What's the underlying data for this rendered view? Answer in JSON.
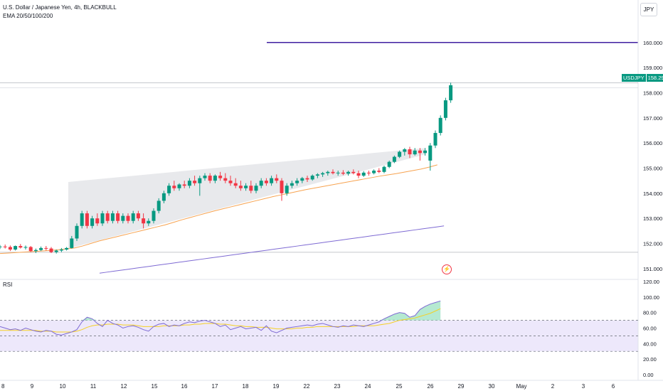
{
  "header": {
    "symbol_title": "U.S. Dollar / Japanese Yen, 4h, BLACKBULL",
    "indicator": "EMA 20/50/100/200"
  },
  "currency_button": "JPY",
  "last_price": {
    "symbol": "USDJPY",
    "value": "158.299"
  },
  "rsi_label": "RSI",
  "colors": {
    "up": "#089981",
    "down": "#f23645",
    "ema_orange": "#f7a350",
    "ema_purple": "#7e6ad3",
    "hline": "#3f1fa0",
    "wedge": "#e6e7ea",
    "rsi_line": "#7e6ad3",
    "rsi_ma": "#f5d024",
    "rsi_band": "#ede8fb"
  },
  "chart_data": [
    {
      "type": "candlestick",
      "yaxis_ticks": [
        "160.000",
        "159.000",
        "158.000",
        "157.000",
        "156.000",
        "155.000",
        "154.000",
        "153.000",
        "152.000",
        "151.000"
      ],
      "ylim": [
        150.6,
        160.9
      ],
      "xaxis_ticks": [
        "8",
        "9",
        "10",
        "11",
        "12",
        "15",
        "16",
        "17",
        "18",
        "19",
        "22",
        "23",
        "24",
        "25",
        "26",
        "29",
        "30",
        "May",
        "2",
        "3",
        "6"
      ],
      "horizontal_line": 160.0,
      "ohlc": [
        [
          151.86,
          151.94,
          151.78,
          151.88
        ],
        [
          151.88,
          151.96,
          151.8,
          151.86
        ],
        [
          151.86,
          151.92,
          151.7,
          151.76
        ],
        [
          151.76,
          151.92,
          151.72,
          151.9
        ],
        [
          151.9,
          151.98,
          151.8,
          151.84
        ],
        [
          151.84,
          151.92,
          151.76,
          151.86
        ],
        [
          151.86,
          151.9,
          151.66,
          151.7
        ],
        [
          151.7,
          151.8,
          151.62,
          151.74
        ],
        [
          151.74,
          151.88,
          151.7,
          151.82
        ],
        [
          151.82,
          151.9,
          151.72,
          151.8
        ],
        [
          151.8,
          151.86,
          151.62,
          151.66
        ],
        [
          151.66,
          151.76,
          151.6,
          151.72
        ],
        [
          151.72,
          151.82,
          151.66,
          151.76
        ],
        [
          151.76,
          151.86,
          151.72,
          151.82
        ],
        [
          151.82,
          152.3,
          151.8,
          152.2
        ],
        [
          152.2,
          152.8,
          152.1,
          152.7
        ],
        [
          152.7,
          153.3,
          152.6,
          153.2
        ],
        [
          153.2,
          153.3,
          152.6,
          152.7
        ],
        [
          152.7,
          153.1,
          152.6,
          153.0
        ],
        [
          153.0,
          153.2,
          152.7,
          152.8
        ],
        [
          152.8,
          153.3,
          152.7,
          153.2
        ],
        [
          153.2,
          153.3,
          152.8,
          152.9
        ],
        [
          152.9,
          153.3,
          152.8,
          153.2
        ],
        [
          153.2,
          153.3,
          152.8,
          152.9
        ],
        [
          152.9,
          153.2,
          152.8,
          153.1
        ],
        [
          153.1,
          153.2,
          152.8,
          152.9
        ],
        [
          152.9,
          153.3,
          152.8,
          153.2
        ],
        [
          153.2,
          153.3,
          152.9,
          153.0
        ],
        [
          153.0,
          153.2,
          152.6,
          152.8
        ],
        [
          152.8,
          153.0,
          152.7,
          152.9
        ],
        [
          152.9,
          153.4,
          152.8,
          153.3
        ],
        [
          153.3,
          153.8,
          153.2,
          153.7
        ],
        [
          153.7,
          154.1,
          153.6,
          154.0
        ],
        [
          154.0,
          154.4,
          153.9,
          154.3
        ],
        [
          154.3,
          154.5,
          154.1,
          154.2
        ],
        [
          154.2,
          154.4,
          154.1,
          154.35
        ],
        [
          154.35,
          154.5,
          154.2,
          154.3
        ],
        [
          154.3,
          154.6,
          154.2,
          154.5
        ],
        [
          154.5,
          154.7,
          154.3,
          154.4
        ],
        [
          154.4,
          154.7,
          153.9,
          154.6
        ],
        [
          154.6,
          154.8,
          154.5,
          154.7
        ],
        [
          154.7,
          154.8,
          154.4,
          154.5
        ],
        [
          154.5,
          154.75,
          154.4,
          154.7
        ],
        [
          154.7,
          154.85,
          154.5,
          154.6
        ],
        [
          154.6,
          154.8,
          154.4,
          154.5
        ],
        [
          154.5,
          154.7,
          154.3,
          154.4
        ],
        [
          154.4,
          154.6,
          154.2,
          154.3
        ],
        [
          154.3,
          154.5,
          154.1,
          154.2
        ],
        [
          154.2,
          154.4,
          154.1,
          154.3
        ],
        [
          154.3,
          154.5,
          154.0,
          154.1
        ],
        [
          154.1,
          154.4,
          154.0,
          154.3
        ],
        [
          154.3,
          154.6,
          154.2,
          154.5
        ],
        [
          154.5,
          154.6,
          154.3,
          154.4
        ],
        [
          154.4,
          154.7,
          154.3,
          154.6
        ],
        [
          154.6,
          154.75,
          154.4,
          154.5
        ],
        [
          154.5,
          154.6,
          153.7,
          154.0
        ],
        [
          154.0,
          154.4,
          153.9,
          154.3
        ],
        [
          154.3,
          154.5,
          154.2,
          154.4
        ],
        [
          154.4,
          154.6,
          154.3,
          154.5
        ],
        [
          154.5,
          154.65,
          154.4,
          154.6
        ],
        [
          154.6,
          154.7,
          154.45,
          154.55
        ],
        [
          154.55,
          154.75,
          154.5,
          154.7
        ],
        [
          154.7,
          154.8,
          154.6,
          154.75
        ],
        [
          154.75,
          154.85,
          154.65,
          154.8
        ],
        [
          154.8,
          154.9,
          154.7,
          154.85
        ],
        [
          154.85,
          154.95,
          154.75,
          154.8
        ],
        [
          154.8,
          154.9,
          154.7,
          154.82
        ],
        [
          154.82,
          154.92,
          154.72,
          154.78
        ],
        [
          154.78,
          154.9,
          154.7,
          154.85
        ],
        [
          154.85,
          154.95,
          154.75,
          154.8
        ],
        [
          154.8,
          154.9,
          154.6,
          154.7
        ],
        [
          154.7,
          154.88,
          154.65,
          154.82
        ],
        [
          154.82,
          154.9,
          154.7,
          154.8
        ],
        [
          154.8,
          154.95,
          154.75,
          154.9
        ],
        [
          154.9,
          155.0,
          154.8,
          154.85
        ],
        [
          154.85,
          155.1,
          154.8,
          155.05
        ],
        [
          155.05,
          155.3,
          155.0,
          155.25
        ],
        [
          155.25,
          155.5,
          155.2,
          155.45
        ],
        [
          155.45,
          155.7,
          155.4,
          155.65
        ],
        [
          155.65,
          155.8,
          155.5,
          155.75
        ],
        [
          155.75,
          155.85,
          155.4,
          155.55
        ],
        [
          155.55,
          155.8,
          155.5,
          155.7
        ],
        [
          155.7,
          155.8,
          155.3,
          155.6
        ],
        [
          155.6,
          155.8,
          155.5,
          155.7
        ],
        [
          155.3,
          156.0,
          154.9,
          155.9
        ],
        [
          155.9,
          156.5,
          155.8,
          156.4
        ],
        [
          156.4,
          157.1,
          156.3,
          157.0
        ],
        [
          157.0,
          157.8,
          156.9,
          157.7
        ],
        [
          157.7,
          158.4,
          157.6,
          158.3
        ]
      ],
      "ema_50": [
        151.6,
        151.62,
        151.64,
        151.66,
        151.68,
        151.7,
        151.72,
        151.75,
        151.78,
        151.82,
        151.9,
        152.0,
        152.1,
        152.18,
        152.26,
        152.34,
        152.42,
        152.5,
        152.58,
        152.66,
        152.74,
        152.84,
        152.94,
        153.03,
        153.12,
        153.21,
        153.3,
        153.38,
        153.46,
        153.54,
        153.62,
        153.7,
        153.78,
        153.86,
        153.93,
        154.0,
        154.07,
        154.14,
        154.2,
        154.26,
        154.32,
        154.38,
        154.44,
        154.5,
        154.56,
        154.62,
        154.68,
        154.73,
        154.78,
        154.84,
        154.9,
        154.96,
        155.04,
        155.13
      ],
      "ema_200": [
        150.82,
        150.86,
        150.9,
        150.94,
        150.98,
        151.02,
        151.06,
        151.1,
        151.14,
        151.18,
        151.22,
        151.26,
        151.3,
        151.34,
        151.38,
        151.42,
        151.46,
        151.5,
        151.54,
        151.58,
        151.62,
        151.66,
        151.7,
        151.74,
        151.78,
        151.82,
        151.86,
        151.9,
        151.94,
        151.98,
        152.02,
        152.06,
        152.1,
        152.14,
        152.18,
        152.22,
        152.26,
        152.3,
        152.34,
        152.38,
        152.42,
        152.46,
        152.5,
        152.54,
        152.58,
        152.62,
        152.66,
        152.7
      ]
    },
    {
      "type": "line",
      "title": "RSI",
      "yaxis_ticks": [
        "120.00",
        "100.00",
        "80.00",
        "60.00",
        "40.00",
        "20.00",
        "0.00"
      ],
      "ylim": [
        0,
        120
      ],
      "bands": [
        30,
        50,
        70
      ],
      "rsi": [
        62,
        60,
        58,
        59,
        57,
        60,
        58,
        56,
        55,
        57,
        56,
        52,
        51,
        53,
        55,
        58,
        68,
        74,
        72,
        66,
        62,
        70,
        66,
        64,
        60,
        62,
        63,
        61,
        58,
        56,
        62,
        65,
        66,
        62,
        64,
        63,
        66,
        68,
        67,
        69,
        70,
        68,
        66,
        62,
        64,
        58,
        60,
        62,
        59,
        60,
        61,
        57,
        63,
        56,
        54,
        57,
        60,
        61,
        62,
        63,
        64,
        63,
        65,
        66,
        64,
        62,
        61,
        63,
        62,
        64,
        63,
        62,
        64,
        66,
        68,
        72,
        75,
        78,
        80,
        79,
        74,
        76,
        84,
        88,
        91,
        93,
        95
      ],
      "rsi_ma": [
        57,
        57,
        57,
        57,
        57,
        57,
        57,
        57,
        56,
        56,
        56,
        55,
        55,
        55,
        55,
        56,
        58,
        61,
        63,
        64,
        64,
        65,
        65,
        65,
        64,
        64,
        64,
        63,
        62,
        62,
        62,
        62,
        63,
        63,
        63,
        63,
        64,
        64,
        65,
        65,
        66,
        66,
        66,
        65,
        65,
        64,
        63,
        63,
        62,
        62,
        61,
        61,
        61,
        60,
        59,
        59,
        59,
        59,
        60,
        60,
        61,
        61,
        62,
        62,
        62,
        62,
        62,
        62,
        62,
        62,
        63,
        63,
        63,
        63,
        64,
        65,
        66,
        68,
        70,
        71,
        72,
        73,
        75,
        77,
        79,
        82,
        85
      ]
    }
  ]
}
